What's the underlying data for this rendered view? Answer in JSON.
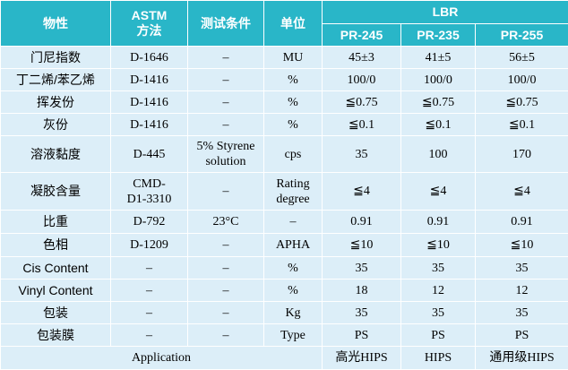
{
  "header": {
    "property": "物性",
    "astm": "ASTM\n方法",
    "condition": "测试条件",
    "unit": "单位",
    "group": "LBR",
    "grades": [
      "PR-245",
      "PR-235",
      "PR-255"
    ]
  },
  "rows": [
    [
      "门尼指数",
      "D-1646",
      "–",
      "MU",
      "45±3",
      "41±5",
      "56±5"
    ],
    [
      "丁二烯/苯乙烯",
      "D-1416",
      "–",
      "%",
      "100/0",
      "100/0",
      "100/0"
    ],
    [
      "挥发份",
      "D-1416",
      "–",
      "%",
      "≦0.75",
      "≦0.75",
      "≦0.75"
    ],
    [
      "灰份",
      "D-1416",
      "–",
      "%",
      "≦0.1",
      "≦0.1",
      "≦0.1"
    ],
    [
      "溶液黏度",
      "D-445",
      "5% Styrene\nsolution",
      "cps",
      "35",
      "100",
      "170"
    ],
    [
      "凝胶含量",
      "CMD-\nD1-3310",
      "–",
      "Rating\ndegree",
      "≦4",
      "≦4",
      "≦4"
    ],
    [
      "比重",
      "D-792",
      "23°C",
      "–",
      "0.91",
      "0.91",
      "0.91"
    ],
    [
      "色相",
      "D-1209",
      "–",
      "APHA",
      "≦10",
      "≦10",
      "≦10"
    ],
    [
      "Cis Content",
      "–",
      "–",
      "%",
      "35",
      "35",
      "35"
    ],
    [
      "Vinyl Content",
      "–",
      "–",
      "%",
      "18",
      "12",
      "12"
    ],
    [
      "包装",
      "–",
      "–",
      "Kg",
      "35",
      "35",
      "35"
    ],
    [
      "包装膜",
      "–",
      "–",
      "Type",
      "PS",
      "PS",
      "PS"
    ]
  ],
  "application": {
    "label": "Application",
    "values": [
      "高光HIPS",
      "HIPS",
      "通用级HIPS"
    ]
  }
}
